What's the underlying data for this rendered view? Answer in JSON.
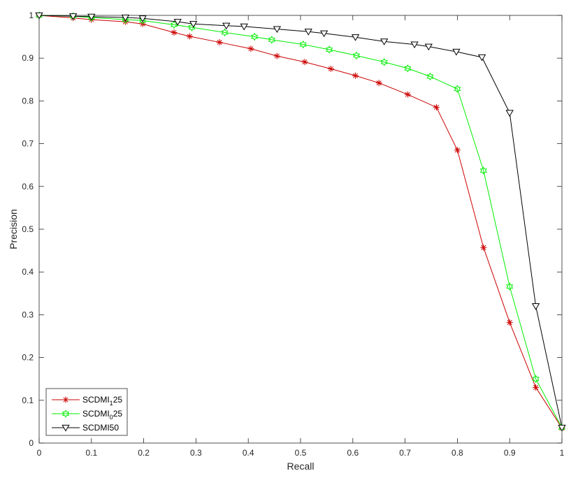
{
  "chart_data": {
    "type": "line",
    "xlabel": "Recall",
    "ylabel": "Precision",
    "xlim": [
      0,
      1
    ],
    "ylim": [
      0,
      1
    ],
    "xticks": [
      "0",
      "0.1",
      "0.2",
      "0.3",
      "0.4",
      "0.5",
      "0.6",
      "0.7",
      "0.8",
      "0.9",
      "1"
    ],
    "yticks": [
      "0",
      "0.1",
      "0.2",
      "0.3",
      "0.4",
      "0.5",
      "0.6",
      "0.7",
      "0.8",
      "0.9",
      "1"
    ],
    "grid": false,
    "legend_position": "bottom-left",
    "series": [
      {
        "legend_main": "SCDMI",
        "legend_sub": "1",
        "legend_tail": "25",
        "color": "#cc0000",
        "marker": "asterisk",
        "x": [
          0,
          0.065,
          0.1,
          0.165,
          0.198,
          0.258,
          0.288,
          0.345,
          0.405,
          0.455,
          0.508,
          0.558,
          0.605,
          0.65,
          0.705,
          0.76,
          0.8,
          0.85,
          0.9,
          0.95,
          1.0
        ],
        "y": [
          1.0,
          0.994,
          0.99,
          0.985,
          0.98,
          0.96,
          0.951,
          0.937,
          0.922,
          0.905,
          0.891,
          0.875,
          0.859,
          0.842,
          0.815,
          0.785,
          0.685,
          0.457,
          0.282,
          0.13,
          0.035
        ]
      },
      {
        "legend_main": "SCDMI",
        "legend_sub": "0",
        "legend_tail": "25",
        "color": "#00ee00",
        "marker": "hexagram",
        "x": [
          0,
          0.065,
          0.1,
          0.165,
          0.198,
          0.258,
          0.292,
          0.355,
          0.412,
          0.445,
          0.505,
          0.555,
          0.607,
          0.66,
          0.705,
          0.748,
          0.8,
          0.85,
          0.9,
          0.95,
          1.0
        ],
        "y": [
          1.0,
          0.998,
          0.995,
          0.99,
          0.988,
          0.978,
          0.972,
          0.96,
          0.95,
          0.943,
          0.932,
          0.92,
          0.906,
          0.891,
          0.876,
          0.857,
          0.828,
          0.637,
          0.366,
          0.15,
          0.036
        ]
      },
      {
        "legend_main": "SCDMI50",
        "legend_sub": "",
        "legend_tail": "",
        "color": "#000000",
        "marker": "triangle-down",
        "x": [
          0,
          0.065,
          0.1,
          0.165,
          0.198,
          0.265,
          0.295,
          0.358,
          0.392,
          0.455,
          0.515,
          0.545,
          0.605,
          0.66,
          0.718,
          0.745,
          0.798,
          0.847,
          0.9,
          0.95,
          1.0
        ],
        "y": [
          1.0,
          0.998,
          0.997,
          0.995,
          0.993,
          0.985,
          0.98,
          0.976,
          0.974,
          0.968,
          0.962,
          0.958,
          0.949,
          0.939,
          0.932,
          0.927,
          0.915,
          0.902,
          0.772,
          0.32,
          0.036
        ]
      }
    ]
  }
}
